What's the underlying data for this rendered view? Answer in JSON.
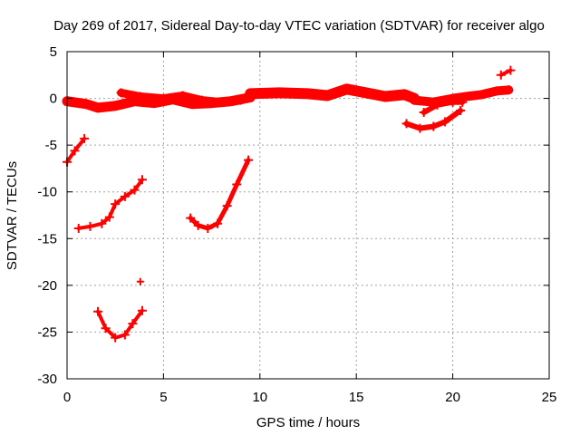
{
  "chart_data": {
    "type": "scatter",
    "title": "Day 269 of 2017, Sidereal Day-to-day VTEC variation (SDTVAR) for receiver algo",
    "xlabel": "GPS time / hours",
    "ylabel": "SDTVAR / TECUs",
    "xlim": [
      0,
      25
    ],
    "ylim": [
      -30,
      5
    ],
    "xticks": [
      0,
      5,
      10,
      15,
      20,
      25
    ],
    "yticks": [
      5,
      0,
      -5,
      -10,
      -15,
      -20,
      -25,
      -30
    ],
    "grid": true,
    "series_color": "#ff0000",
    "series": [
      {
        "name": "main-band-a",
        "weight": 11,
        "x": [
          0.0,
          1.0,
          1.6,
          2.5,
          3.5,
          4.5,
          5.5,
          6.5,
          7.5,
          8.5,
          9.5
        ],
        "y": [
          -0.3,
          -0.6,
          -1.0,
          -0.8,
          -0.3,
          -0.5,
          -0.1,
          -0.6,
          -0.5,
          -0.3,
          0.1
        ]
      },
      {
        "name": "main-band-b",
        "weight": 9,
        "x": [
          2.8,
          3.8,
          5.0,
          6.0,
          7.0,
          8.0,
          9.0
        ],
        "y": [
          0.6,
          0.2,
          0.0,
          0.3,
          -0.2,
          -0.4,
          -0.2
        ]
      },
      {
        "name": "main-band-c",
        "weight": 12,
        "x": [
          9.5,
          11.0,
          12.5,
          13.5,
          14.5,
          15.5,
          16.5,
          17.5,
          18.0
        ],
        "y": [
          0.5,
          0.6,
          0.5,
          0.3,
          1.0,
          0.6,
          0.2,
          0.4,
          0.0
        ]
      },
      {
        "name": "main-band-d",
        "weight": 10,
        "x": [
          18.0,
          19.0,
          20.0,
          20.7,
          21.5,
          22.3,
          22.9
        ],
        "y": [
          -0.2,
          -0.4,
          0.0,
          0.2,
          0.4,
          0.8,
          0.9
        ]
      },
      {
        "name": "dip-branch",
        "weight": 6,
        "x": [
          18.5,
          19.2,
          20.0,
          20.5
        ],
        "y": [
          -1.5,
          -0.7,
          -0.4,
          -0.4
        ]
      },
      {
        "name": "lower-arc",
        "weight": 6,
        "x": [
          17.6,
          18.3,
          19.0,
          19.6,
          20.4
        ],
        "y": [
          -2.7,
          -3.2,
          -3.0,
          -2.5,
          -1.3
        ]
      },
      {
        "name": "tail-up",
        "weight": 4,
        "x": [
          22.5,
          23.0
        ],
        "y": [
          2.5,
          3.0
        ]
      },
      {
        "name": "start-rise",
        "weight": 4,
        "x": [
          0.0,
          0.4,
          0.9
        ],
        "y": [
          -6.8,
          -5.6,
          -4.3
        ]
      },
      {
        "name": "rise-a",
        "weight": 4,
        "x": [
          0.6,
          1.2,
          1.8,
          2.2,
          2.5,
          3.0,
          3.5,
          3.9
        ],
        "y": [
          -13.9,
          -13.7,
          -13.4,
          -12.7,
          -11.3,
          -10.5,
          -9.8,
          -8.7
        ]
      },
      {
        "name": "v-curve",
        "weight": 4,
        "x": [
          1.6,
          2.0,
          2.5,
          3.0,
          3.4,
          3.9
        ],
        "y": [
          -22.8,
          -24.6,
          -25.6,
          -25.3,
          -24.1,
          -22.7
        ]
      },
      {
        "name": "u-curve",
        "weight": 5,
        "x": [
          6.4,
          6.8,
          7.3,
          7.8,
          8.3,
          8.8,
          9.4
        ],
        "y": [
          -12.8,
          -13.6,
          -13.9,
          -13.4,
          -11.5,
          -9.2,
          -6.6
        ]
      }
    ],
    "isolated_points": [
      {
        "x": 3.8,
        "y": -19.6
      }
    ]
  }
}
